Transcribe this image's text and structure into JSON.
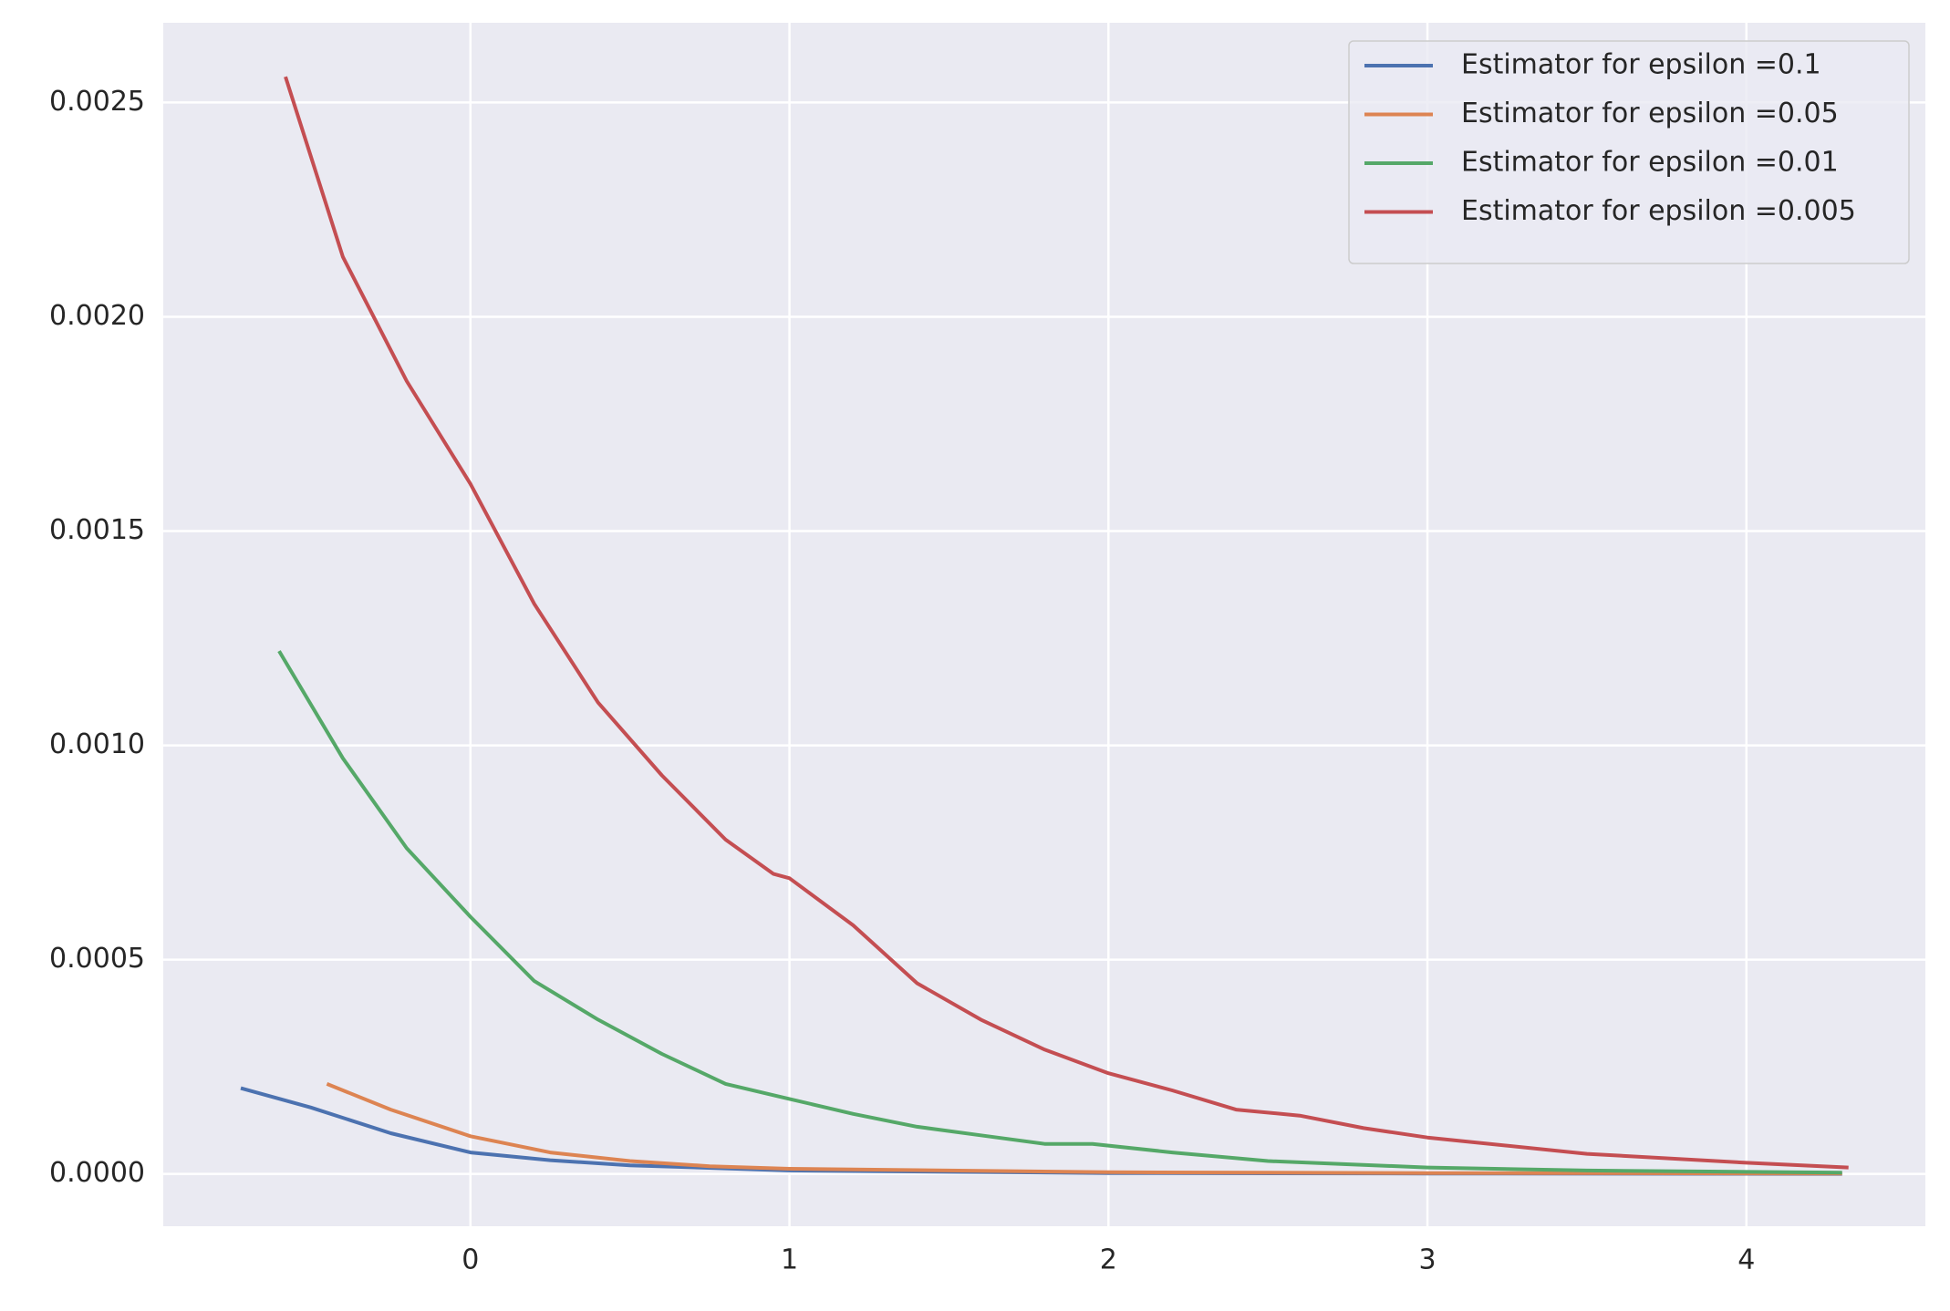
{
  "chart_data": {
    "type": "line",
    "xlim": [
      -0.963,
      4.561
    ],
    "ylim": [
      -0.000122,
      0.002686
    ],
    "xticks": [
      0,
      1,
      2,
      3,
      4
    ],
    "yticks": [
      {
        "value": 0,
        "label": "0.0000"
      },
      {
        "value": 0.0005,
        "label": "0.0005"
      },
      {
        "value": 0.001,
        "label": "0.0010"
      },
      {
        "value": 0.0015,
        "label": "0.0015"
      },
      {
        "value": 0.002,
        "label": "0.0020"
      },
      {
        "value": 0.0025,
        "label": "0.0025"
      }
    ],
    "grid": true,
    "legend": "upper right",
    "series": [
      {
        "name": "Estimator for epsilon =0.1",
        "color": "#4c72b0",
        "x": [
          -0.72,
          -0.5,
          -0.25,
          0,
          0.25,
          0.5,
          1,
          2,
          3,
          4.3
        ],
        "values": [
          0.0002,
          0.000155,
          9.5e-05,
          5e-05,
          3.2e-05,
          2e-05,
          8e-06,
          2e-06,
          1e-06,
          0
        ]
      },
      {
        "name": "Estimator for epsilon =0.05",
        "color": "#dd8452",
        "x": [
          -0.45,
          -0.25,
          0,
          0.25,
          0.5,
          0.75,
          1,
          2,
          3,
          4.3
        ],
        "values": [
          0.00021,
          0.00015,
          8.8e-05,
          5e-05,
          3e-05,
          1.8e-05,
          1.2e-05,
          4e-06,
          2e-06,
          1e-06
        ]
      },
      {
        "name": "Estimator for epsilon =0.01",
        "color": "#55a868",
        "x": [
          -0.6,
          -0.4,
          -0.2,
          0,
          0.2,
          0.4,
          0.6,
          0.8,
          1,
          1.2,
          1.4,
          1.6,
          1.8,
          1.95,
          2.2,
          2.5,
          3,
          3.5,
          4.3
        ],
        "values": [
          0.00122,
          0.00097,
          0.00076,
          0.0006,
          0.00045,
          0.00036,
          0.00028,
          0.00021,
          0.000175,
          0.00014,
          0.00011,
          9e-05,
          7e-05,
          7e-05,
          5e-05,
          3e-05,
          1.5e-05,
          8e-06,
          3e-06
        ]
      },
      {
        "name": "Estimator for epsilon =0.005",
        "color": "#c44e52",
        "x": [
          -0.58,
          -0.4,
          -0.2,
          0,
          0.2,
          0.4,
          0.6,
          0.8,
          0.95,
          1,
          1.2,
          1.4,
          1.6,
          1.8,
          2,
          2.2,
          2.4,
          2.6,
          2.8,
          3,
          3.5,
          4,
          4.32
        ],
        "values": [
          0.00256,
          0.00214,
          0.00185,
          0.00161,
          0.00133,
          0.0011,
          0.00093,
          0.00078,
          0.0007,
          0.00069,
          0.00058,
          0.000445,
          0.00036,
          0.00029,
          0.000235,
          0.000195,
          0.00015,
          0.000136,
          0.000107,
          8.5e-05,
          4.7e-05,
          2.6e-05,
          1.5e-05
        ]
      }
    ]
  }
}
